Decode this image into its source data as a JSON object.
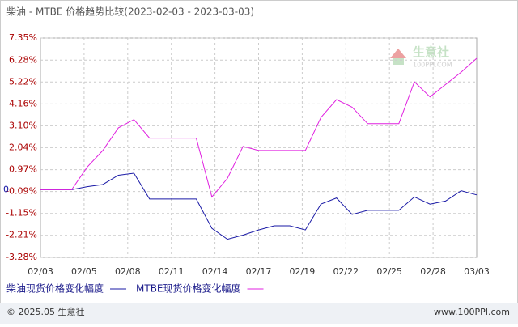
{
  "chart_data": {
    "type": "line",
    "title": "柴油 - MTBE 价格趋势比较(2023-02-03 - 2023-03-03)",
    "xtick_labels": [
      "02/03",
      "02/05",
      "02/08",
      "02/11",
      "02/14",
      "02/17",
      "02/19",
      "02/22",
      "02/25",
      "02/28",
      "03/03"
    ],
    "ylim": [
      -3.28,
      7.35
    ],
    "yticks": [
      {
        "value": 7.35,
        "label": "7.35%"
      },
      {
        "value": 6.28,
        "label": "6.28%"
      },
      {
        "value": 5.22,
        "label": "5.22%"
      },
      {
        "value": 4.16,
        "label": "4.16%"
      },
      {
        "value": 3.1,
        "label": "3.10%"
      },
      {
        "value": 2.04,
        "label": "2.04%"
      },
      {
        "value": 0.97,
        "label": "0.97%"
      },
      {
        "value": -0.09,
        "label": "-0.09%"
      },
      {
        "value": -1.15,
        "label": "-1.15%"
      },
      {
        "value": -2.21,
        "label": "-2.21%"
      },
      {
        "value": -3.28,
        "label": "-3.28%"
      }
    ],
    "zero_label": {
      "value": 0,
      "label": "0"
    },
    "grid": true,
    "series": [
      {
        "name": "柴油现货价格变化幅度",
        "color": "#1a1aa6",
        "values": [
          0,
          0,
          0,
          0.15,
          0.25,
          0.7,
          0.8,
          -0.45,
          -0.45,
          -0.45,
          -0.45,
          -1.87,
          -2.4,
          -2.2,
          -1.95,
          -1.75,
          -1.75,
          -1.95,
          -0.7,
          -0.4,
          -1.2,
          -1.0,
          -1.0,
          -1.0,
          -0.35,
          -0.7,
          -0.55,
          -0.05,
          -0.25
        ]
      },
      {
        "name": "MTBE现货价格变化幅度",
        "color": "#e020e0",
        "values": [
          0,
          0,
          0,
          1.1,
          1.9,
          3.0,
          3.4,
          2.5,
          2.5,
          2.5,
          2.5,
          -0.35,
          0.55,
          2.1,
          1.9,
          1.9,
          1.9,
          1.9,
          3.5,
          4.37,
          4.0,
          3.2,
          3.2,
          3.2,
          5.23,
          4.5,
          5.1,
          5.7,
          6.37
        ]
      }
    ],
    "watermark": {
      "name": "生意社",
      "site": "100PPI.COM"
    },
    "footer": {
      "copyright": "© 2025.05 生意社",
      "url": "www.100PPI.com"
    }
  }
}
